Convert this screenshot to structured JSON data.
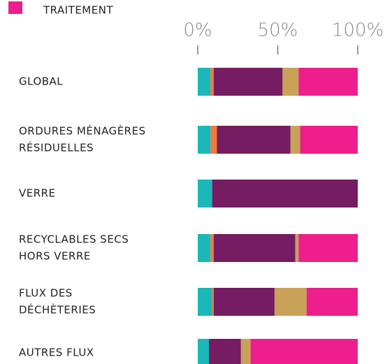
{
  "chart_data": {
    "type": "stacked-barh",
    "categories": [
      [
        "GLOBAL"
      ],
      [
        "ORDURES MÉNAGÈRES",
        "RÉSIDUELLES"
      ],
      [
        "VERRE"
      ],
      [
        "RECYCLABLES SECS",
        "HORS VERRE"
      ],
      [
        "FLUX DES",
        "DÉCHÈTERIES"
      ],
      [
        "AUTRES FLUX"
      ]
    ],
    "series": [
      {
        "color": "#1bb7b9",
        "values": [
          8,
          8,
          9,
          8,
          9,
          7
        ]
      },
      {
        "color": "#f07a3a",
        "values": [
          2,
          4,
          0,
          2,
          1,
          0
        ]
      },
      {
        "color": "#751c62",
        "values": [
          43,
          46,
          91,
          51,
          38,
          20
        ]
      },
      {
        "color": "#c9a157",
        "values": [
          10,
          6,
          0,
          2,
          20,
          6
        ]
      },
      {
        "name": "TRAITEMENT",
        "color": "#ed1f8c",
        "values": [
          37,
          36,
          0,
          37,
          32,
          67
        ]
      }
    ],
    "xlim": [
      0,
      100
    ],
    "xticks": [
      {
        "value": 0,
        "label": "0%"
      },
      {
        "value": 50,
        "label": "50%"
      },
      {
        "value": 100,
        "label": "100%"
      }
    ],
    "legend": "top-left"
  }
}
